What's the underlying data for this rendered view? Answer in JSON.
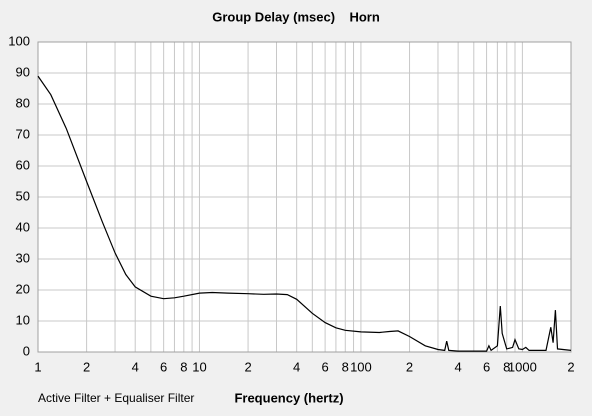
{
  "chart_data": {
    "type": "line",
    "title": "Group Delay (msec)    Horn",
    "x_label": "Frequency (hertz)",
    "legend_text": "Active Filter + Equaliser Filter",
    "legend_color": "#cc0000",
    "log_x": true,
    "grid": true,
    "xlim": [
      1,
      2000
    ],
    "ylim": [
      0,
      100
    ],
    "xticks": [
      1,
      2,
      4,
      6,
      8,
      10,
      {
        "value": 20,
        "label": "2"
      },
      {
        "value": 40,
        "label": "4"
      },
      {
        "value": 60,
        "label": "6"
      },
      {
        "value": 80,
        "label": "8"
      },
      100,
      {
        "value": 200,
        "label": "2"
      },
      {
        "value": 400,
        "label": "4"
      },
      {
        "value": 600,
        "label": "6"
      },
      {
        "value": 800,
        "label": "8"
      },
      1000,
      {
        "value": 2000,
        "label": "2"
      }
    ],
    "x_minor_grid": [
      3,
      5,
      7,
      9,
      30,
      50,
      70,
      90,
      300,
      500,
      700,
      900
    ],
    "yticks": [
      0,
      10,
      20,
      30,
      40,
      50,
      60,
      70,
      80,
      90,
      100
    ],
    "x": [
      1,
      1.2,
      1.5,
      2,
      2.5,
      3,
      3.5,
      4,
      5,
      6,
      7,
      8,
      10,
      12,
      15,
      20,
      25,
      30,
      35,
      40,
      50,
      60,
      70,
      80,
      100,
      130,
      150,
      170,
      200,
      250,
      300,
      330,
      340,
      350,
      400,
      600,
      620,
      640,
      700,
      730,
      750,
      800,
      870,
      900,
      950,
      1000,
      1050,
      1100,
      1400,
      1500,
      1550,
      1600,
      1650,
      2000
    ],
    "series": [
      {
        "name": "Group Delay",
        "color": "#000000",
        "values": [
          89,
          83,
          72,
          55,
          42,
          32,
          25,
          21,
          18,
          17.2,
          17.5,
          18,
          19,
          19.2,
          19,
          18.8,
          18.6,
          18.7,
          18.5,
          17,
          12.5,
          9.5,
          7.8,
          7,
          6.5,
          6.3,
          6.6,
          6.8,
          5,
          2,
          0.8,
          0.5,
          3.5,
          0.5,
          0.3,
          0.3,
          2,
          0.5,
          2,
          14.8,
          6,
          1,
          1.5,
          4,
          1,
          0.8,
          1.5,
          0.5,
          0.5,
          8,
          3,
          13.5,
          1,
          0.5
        ]
      }
    ]
  }
}
